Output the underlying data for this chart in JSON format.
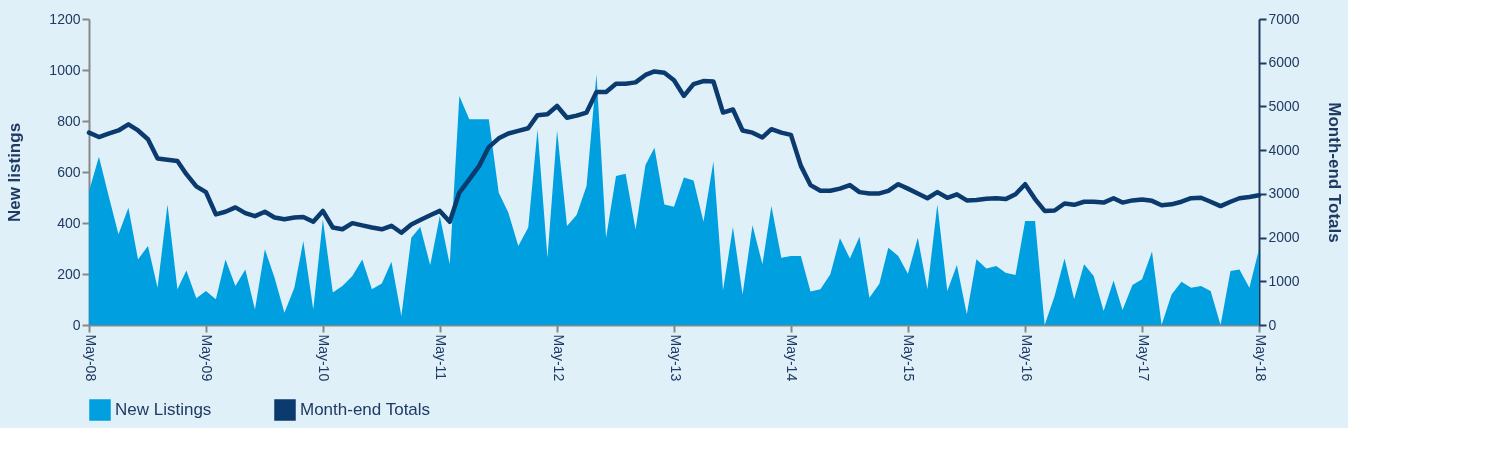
{
  "chart_data": {
    "type": "area",
    "x": [
      "2008-05",
      "2008-06",
      "2008-07",
      "2008-08",
      "2008-09",
      "2008-10",
      "2008-11",
      "2008-12",
      "2009-01",
      "2009-02",
      "2009-03",
      "2009-04",
      "2009-05",
      "2009-06",
      "2009-07",
      "2009-08",
      "2009-09",
      "2009-10",
      "2009-11",
      "2009-12",
      "2010-01",
      "2010-02",
      "2010-03",
      "2010-04",
      "2010-05",
      "2010-06",
      "2010-07",
      "2010-08",
      "2010-09",
      "2010-10",
      "2010-11",
      "2010-12",
      "2011-01",
      "2011-02",
      "2011-03",
      "2011-04",
      "2011-05",
      "2011-06",
      "2011-07",
      "2011-08",
      "2011-09",
      "2011-10",
      "2011-11",
      "2011-12",
      "2012-01",
      "2012-02",
      "2012-03",
      "2012-04",
      "2012-05",
      "2012-06",
      "2012-07",
      "2012-08",
      "2012-09",
      "2012-10",
      "2012-11",
      "2012-12",
      "2013-01",
      "2013-02",
      "2013-03",
      "2013-04",
      "2013-05",
      "2013-06",
      "2013-07",
      "2013-08",
      "2013-09",
      "2013-10",
      "2013-11",
      "2013-12",
      "2014-01",
      "2014-02",
      "2014-03",
      "2014-04",
      "2014-05",
      "2014-06",
      "2014-07",
      "2014-08",
      "2014-09",
      "2014-10",
      "2014-11",
      "2014-12",
      "2015-01",
      "2015-02",
      "2015-03",
      "2015-04",
      "2015-05",
      "2015-06",
      "2015-07",
      "2015-08",
      "2015-09",
      "2015-10",
      "2015-11",
      "2015-12",
      "2016-01",
      "2016-02",
      "2016-03",
      "2016-04",
      "2016-05",
      "2016-06",
      "2016-07",
      "2016-08",
      "2016-09",
      "2016-10",
      "2016-11",
      "2016-12",
      "2017-01",
      "2017-02",
      "2017-03",
      "2017-04",
      "2017-05",
      "2017-06",
      "2017-07",
      "2017-08",
      "2017-09",
      "2017-10",
      "2017-11",
      "2017-12",
      "2018-01",
      "2018-02",
      "2018-03",
      "2018-04",
      "2018-05"
    ],
    "series": [
      {
        "name": "New Listings",
        "color": "#009fdf",
        "values": [
          525,
          660,
          508,
          356,
          460,
          257,
          310,
          146,
          473,
          140,
          214,
          105,
          133,
          101,
          257,
          153,
          218,
          61,
          297,
          186,
          48,
          146,
          329,
          61,
          414,
          127,
          153,
          192,
          257,
          140,
          163,
          248,
          35,
          342,
          384,
          235,
          427,
          238,
          898,
          807,
          807,
          807,
          519,
          440,
          310,
          382,
          767,
          264,
          763,
          388,
          431,
          545,
          983,
          342,
          584,
          593,
          375,
          627,
          695,
          473,
          464,
          578,
          567,
          405,
          641,
          136,
          384,
          120,
          391,
          238,
          467,
          264,
          271,
          271,
          131,
          140,
          199,
          340,
          261,
          346,
          107,
          162,
          303,
          271,
          201,
          342,
          140,
          473,
          133,
          235,
          42,
          258,
          222,
          231,
          205,
          196,
          408,
          408,
          0,
          114,
          261,
          101,
          238,
          192,
          55,
          175,
          59,
          157,
          179,
          288,
          0,
          120,
          170,
          146,
          153,
          133,
          0,
          212,
          218,
          146,
          297
        ]
      },
      {
        "name": "Month-end Totals",
        "type": "line",
        "axis": "y2",
        "color": "#0b3a6e",
        "values": [
          4400,
          4300,
          4380,
          4450,
          4590,
          4450,
          4250,
          3810,
          3780,
          3750,
          3450,
          3170,
          3040,
          2530,
          2590,
          2690,
          2560,
          2490,
          2590,
          2460,
          2420,
          2460,
          2470,
          2360,
          2610,
          2230,
          2190,
          2330,
          2280,
          2230,
          2190,
          2270,
          2110,
          2300,
          2400,
          2510,
          2610,
          2360,
          3030,
          3330,
          3640,
          4070,
          4270,
          4380,
          4440,
          4500,
          4800,
          4820,
          5010,
          4740,
          4790,
          4860,
          5330,
          5330,
          5520,
          5520,
          5550,
          5720,
          5800,
          5770,
          5600,
          5240,
          5510,
          5580,
          5570,
          4860,
          4930,
          4450,
          4400,
          4290,
          4480,
          4400,
          4350,
          3640,
          3200,
          3070,
          3070,
          3120,
          3200,
          3040,
          3010,
          3010,
          3070,
          3220,
          3120,
          3010,
          2900,
          3040,
          2910,
          2990,
          2850,
          2860,
          2890,
          2900,
          2880,
          2990,
          3220,
          2880,
          2610,
          2620,
          2780,
          2750,
          2820,
          2820,
          2800,
          2900,
          2800,
          2850,
          2870,
          2840,
          2740,
          2760,
          2820,
          2900,
          2910,
          2820,
          2720,
          2820,
          2900,
          2930,
          2970
        ]
      }
    ],
    "xlim": [
      "2008-05",
      "2018-05"
    ],
    "xticks": [
      {
        "value": "2008-05",
        "label": "May-08"
      },
      {
        "value": "2009-05",
        "label": "May-09"
      },
      {
        "value": "2010-05",
        "label": "May-10"
      },
      {
        "value": "2011-05",
        "label": "May-11"
      },
      {
        "value": "2012-05",
        "label": "May-12"
      },
      {
        "value": "2013-05",
        "label": "May-13"
      },
      {
        "value": "2014-05",
        "label": "May-14"
      },
      {
        "value": "2015-05",
        "label": "May-15"
      },
      {
        "value": "2016-05",
        "label": "May-16"
      },
      {
        "value": "2017-05",
        "label": "May-17"
      },
      {
        "value": "2018-05",
        "label": "May-18"
      }
    ],
    "ylim": [
      0,
      1200
    ],
    "yticks": [
      0,
      200,
      400,
      600,
      800,
      1000,
      1200
    ],
    "y2lim": [
      0,
      7000
    ],
    "y2ticks": [
      0,
      1000,
      2000,
      3000,
      4000,
      5000,
      6000,
      7000
    ],
    "ylabel": "New listings",
    "y2label": "Month-end Totals",
    "legend": "bottom",
    "grid": false
  }
}
